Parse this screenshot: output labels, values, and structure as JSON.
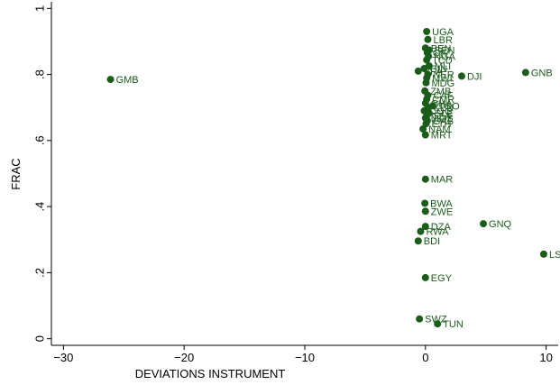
{
  "chart_data": {
    "type": "scatter",
    "title": "",
    "xlabel": "DEVIATIONS INSTRUMENT",
    "ylabel": "FRAC",
    "xlim": [
      -31,
      11
    ],
    "ylim": [
      -0.02,
      1.02
    ],
    "xticks": [
      -30,
      -20,
      -10,
      0,
      10
    ],
    "xtick_labels": [
      "−30",
      "−20",
      "−10",
      "0",
      "10"
    ],
    "yticks": [
      0,
      0.2,
      0.4,
      0.6,
      0.8,
      1
    ],
    "ytick_labels": [
      "0",
      ".2",
      ".4",
      ".6",
      ".8",
      "1"
    ],
    "grid": false,
    "colors": {
      "marker": "#1a5c1a",
      "label": "#1a5c1a",
      "axis": "#000000",
      "background": "#ffffff"
    },
    "points": [
      {
        "label": "GMB",
        "x": -26.1,
        "y": 0.785
      },
      {
        "label": "UGA",
        "x": 0.1,
        "y": 0.93
      },
      {
        "label": "LBR",
        "x": 0.2,
        "y": 0.906
      },
      {
        "label": "BEN",
        "x": 0.0,
        "y": 0.88
      },
      {
        "label": "SEN",
        "x": 0.3,
        "y": 0.874
      },
      {
        "label": "CIV",
        "x": 0.15,
        "y": 0.866
      },
      {
        "label": "NGA",
        "x": 0.25,
        "y": 0.855
      },
      {
        "label": "TCD",
        "x": 0.1,
        "y": 0.844
      },
      {
        "label": "MLI",
        "x": 0.3,
        "y": 0.826
      },
      {
        "label": "GIN",
        "x": -0.1,
        "y": 0.818
      },
      {
        "label": "BFA",
        "x": -0.6,
        "y": 0.81
      },
      {
        "label": "NER",
        "x": 0.2,
        "y": 0.8
      },
      {
        "label": "DJI",
        "x": 3.0,
        "y": 0.795
      },
      {
        "label": "GNB",
        "x": 8.3,
        "y": 0.806
      },
      {
        "label": "MWI",
        "x": 0.1,
        "y": 0.789
      },
      {
        "label": "MDG",
        "x": 0.05,
        "y": 0.775
      },
      {
        "label": "ZMB",
        "x": -0.05,
        "y": 0.75
      },
      {
        "label": "CAF",
        "x": 0.2,
        "y": 0.737
      },
      {
        "label": "CMR",
        "x": 0.1,
        "y": 0.725
      },
      {
        "label": "GHA",
        "x": 0.0,
        "y": 0.713
      },
      {
        "label": "TGO",
        "x": 0.6,
        "y": 0.705
      },
      {
        "label": "KEN",
        "x": 0.2,
        "y": 0.7
      },
      {
        "label": "COG",
        "x": -0.1,
        "y": 0.69
      },
      {
        "label": "SLE",
        "x": 0.3,
        "y": 0.683
      },
      {
        "label": "TZA",
        "x": 0.1,
        "y": 0.675
      },
      {
        "label": "MOZ",
        "x": 0.0,
        "y": 0.668
      },
      {
        "label": "GAB",
        "x": 0.15,
        "y": 0.66
      },
      {
        "label": "ETH",
        "x": 0.05,
        "y": 0.651
      },
      {
        "label": "NAM",
        "x": -0.2,
        "y": 0.635
      },
      {
        "label": "MRT",
        "x": 0.0,
        "y": 0.617
      },
      {
        "label": "MAR",
        "x": 0.0,
        "y": 0.483
      },
      {
        "label": "BWA",
        "x": -0.05,
        "y": 0.41
      },
      {
        "label": "ZWE",
        "x": 0.0,
        "y": 0.386
      },
      {
        "label": "GNQ",
        "x": 4.8,
        "y": 0.348
      },
      {
        "label": "DZA",
        "x": 0.0,
        "y": 0.34
      },
      {
        "label": "RWA",
        "x": -0.4,
        "y": 0.325
      },
      {
        "label": "BDI",
        "x": -0.6,
        "y": 0.296
      },
      {
        "label": "LSO",
        "x": 9.8,
        "y": 0.256
      },
      {
        "label": "EGY",
        "x": 0.0,
        "y": 0.185
      },
      {
        "label": "SWZ",
        "x": -0.5,
        "y": 0.06
      },
      {
        "label": "TUN",
        "x": 1.0,
        "y": 0.045
      }
    ]
  }
}
